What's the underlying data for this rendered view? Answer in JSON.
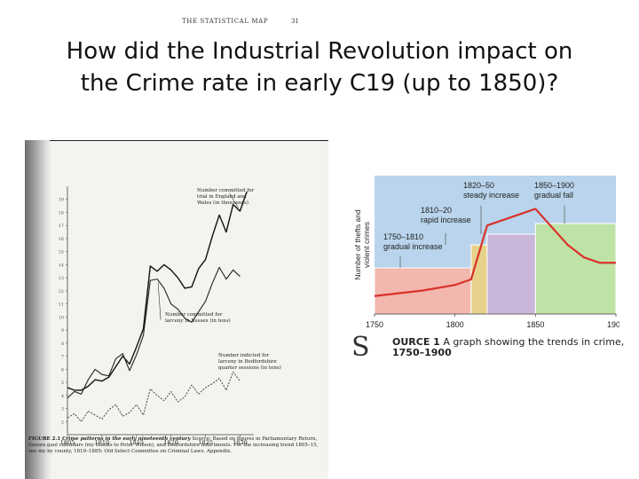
{
  "slide": {
    "title_line1": "How did the Industrial Revolution impact on",
    "title_line2": "the Crime rate in early C19 (up to 1850)?"
  },
  "book_page": {
    "header": "THE STATISTICAL MAP",
    "page_number": "31",
    "figure_label": "FIGURE 2.1",
    "figure_title": "Crime patterns in the early nineteenth century",
    "caption_rest": "Source: Based on figures in Parliamentary Return, Sussex gaol calendars (my thanks to Peter Wilson), and Bedfordshire indictments. For the increasing trend 1805–15, see my by county, 1819–1885; Old Select Committee on Criminal Laws, Appendix.",
    "annotations": {
      "england_wales": [
        "Number committed for",
        "trial in England and",
        "Wales (in thousands)"
      ],
      "sussex": [
        "Number committed for",
        "larceny in Sussex (in tens)"
      ],
      "bedfordshire": [
        "Number indicted for",
        "larceny in Bedfordshire",
        "quarter sessions (in tens)"
      ]
    },
    "chart_data": {
      "type": "line",
      "x_ticks": [
        "1805",
        "1810",
        "1815",
        "1820",
        "1825",
        "1830"
      ],
      "y_ticks": [
        "2",
        "3",
        "4",
        "5",
        "6",
        "7",
        "8",
        "9",
        "10",
        "11",
        "12",
        "13",
        "14",
        "15",
        "16",
        "17",
        "18",
        "19"
      ],
      "xlim": [
        1805,
        1832
      ],
      "ylim": [
        1,
        20
      ],
      "series": [
        {
          "name": "Number committed for trial in England and Wales (in thousands)",
          "x": [
            1805,
            1806,
            1807,
            1808,
            1809,
            1810,
            1811,
            1812,
            1813,
            1814,
            1815,
            1816,
            1817,
            1818,
            1819,
            1820,
            1821,
            1822,
            1823,
            1824,
            1825,
            1826,
            1827,
            1828,
            1829,
            1830,
            1831
          ],
          "y": [
            4.6,
            4.4,
            4.4,
            4.7,
            5.2,
            5.1,
            5.4,
            6.2,
            7.0,
            6.4,
            7.7,
            9.1,
            13.9,
            13.5,
            14.0,
            13.6,
            13.0,
            12.2,
            12.3,
            13.7,
            14.4,
            16.2,
            17.8,
            16.5,
            18.6,
            18.1,
            19.6
          ]
        },
        {
          "name": "Number committed for larceny in Sussex (in tens)",
          "x": [
            1805,
            1806,
            1807,
            1808,
            1809,
            1810,
            1811,
            1812,
            1813,
            1814,
            1815,
            1816,
            1817,
            1818,
            1819,
            1820,
            1821,
            1822,
            1823,
            1824,
            1825,
            1826,
            1827,
            1828,
            1829,
            1830
          ],
          "y": [
            3.8,
            4.3,
            4.1,
            5.2,
            6.0,
            5.6,
            5.5,
            6.8,
            7.2,
            5.9,
            7.1,
            8.6,
            12.8,
            12.9,
            12.2,
            11.0,
            10.6,
            9.9,
            9.6,
            10.4,
            11.2,
            12.6,
            13.8,
            12.9,
            13.6,
            13.1
          ]
        },
        {
          "name": "Number indicted for larceny in Bedfordshire quarter sessions (in tens)",
          "x": [
            1805,
            1806,
            1807,
            1808,
            1809,
            1810,
            1811,
            1812,
            1813,
            1814,
            1815,
            1816,
            1817,
            1818,
            1819,
            1820,
            1821,
            1822,
            1823,
            1824,
            1825,
            1826,
            1827,
            1828,
            1829,
            1830
          ],
          "y": [
            2.3,
            2.6,
            2.0,
            2.8,
            2.5,
            2.2,
            2.9,
            3.3,
            2.4,
            2.7,
            3.3,
            2.5,
            4.5,
            4.0,
            3.6,
            4.3,
            3.5,
            3.9,
            4.8,
            4.1,
            4.6,
            4.9,
            5.3,
            4.4,
            5.8,
            5.1
          ]
        }
      ]
    }
  },
  "source_graph": {
    "ylabel_line1": "Number of thefts and",
    "ylabel_line2": "violent crimes",
    "caption_letter": "S",
    "caption_rest": "OURCE 1",
    "caption_text": "A graph showing the trends in crime,",
    "caption_years": "1750–1900",
    "chart_data": {
      "type": "line",
      "x_ticks": [
        "1750",
        "1800",
        "1850",
        "1900"
      ],
      "xlim": [
        1750,
        1900
      ],
      "ylim": [
        0,
        10
      ],
      "periods": [
        {
          "label_years": "1750–1810",
          "label_text": "gradual increase",
          "start": 1750,
          "end": 1810,
          "color": "#f2b7ae"
        },
        {
          "label_years": "1810–20",
          "label_text": "rapid increase",
          "start": 1810,
          "end": 1820,
          "color": "#e6d28a"
        },
        {
          "label_years": "1820–50",
          "label_text": "steady increase",
          "start": 1820,
          "end": 1850,
          "color": "#c9b6d8"
        },
        {
          "label_years": "1850–1900",
          "label_text": "gradual fall",
          "start": 1850,
          "end": 1900,
          "color": "#bfe3a6"
        }
      ],
      "series": [
        {
          "x": [
            1750,
            1780,
            1800,
            1810,
            1820,
            1830,
            1840,
            1850,
            1860,
            1870,
            1880,
            1890,
            1900
          ],
          "y": [
            1.3,
            1.7,
            2.1,
            2.5,
            6.4,
            6.8,
            7.2,
            7.6,
            6.3,
            5.0,
            4.1,
            3.7,
            3.7
          ],
          "color": "#d9322b"
        }
      ]
    }
  }
}
